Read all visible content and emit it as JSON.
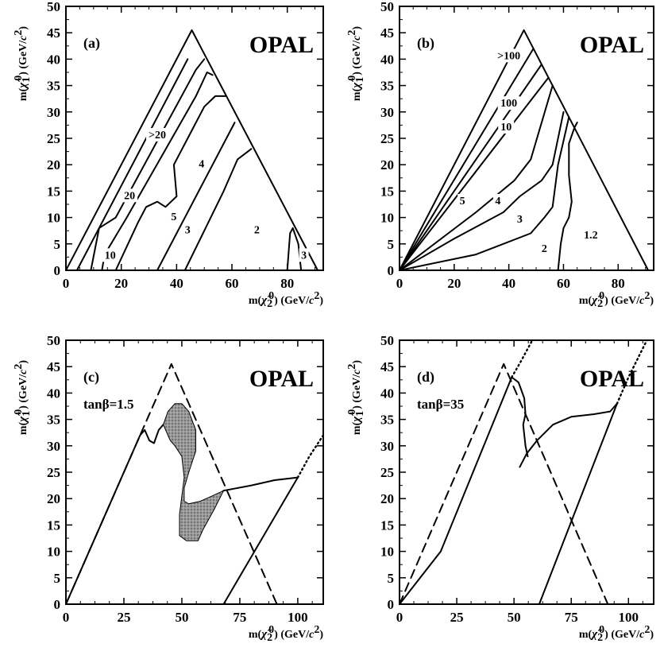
{
  "chart_data": [
    {
      "type": "line",
      "panel": "a",
      "tag": "(a)",
      "experiment": "OPAL",
      "xlabel": "m(χ̃₂⁰) (GeV/c²)",
      "ylabel": "m(χ̃₁⁰) (GeV/c²)",
      "xlim": [
        0,
        93
      ],
      "ylim": [
        0,
        50
      ],
      "xticks": [
        0,
        20,
        40,
        60,
        80
      ],
      "yticks": [
        0,
        5,
        10,
        15,
        20,
        25,
        30,
        35,
        40,
        45,
        50
      ],
      "series": [
        {
          "name": "boundary",
          "style": "solid",
          "x": [
            0,
            45.5,
            91,
            0
          ],
          "y": [
            0,
            45.5,
            0,
            0
          ]
        },
        {
          "style": "solid",
          "x": [
            4,
            44
          ],
          "y": [
            0,
            40
          ]
        },
        {
          "style": "solid",
          "x": [
            9,
            12,
            18,
            47,
            50
          ],
          "y": [
            0,
            8,
            10,
            38,
            40
          ]
        },
        {
          "style": "solid",
          "x": [
            13,
            14,
            22,
            47,
            51,
            53
          ],
          "y": [
            0,
            3,
            10,
            33,
            37.5,
            37
          ]
        },
        {
          "style": "solid",
          "x": [
            18,
            26,
            29,
            33,
            36,
            40,
            39,
            45,
            50,
            54,
            58
          ],
          "y": [
            0,
            9,
            12,
            13,
            12,
            14,
            20,
            26,
            31,
            33,
            33
          ]
        },
        {
          "style": "solid",
          "x": [
            33,
            61
          ],
          "y": [
            0,
            28
          ]
        },
        {
          "style": "solid",
          "x": [
            43,
            57,
            62,
            67
          ],
          "y": [
            0,
            15,
            21,
            23
          ]
        },
        {
          "style": "solid",
          "x": [
            80,
            81,
            82,
            84,
            85
          ],
          "y": [
            0,
            7,
            8,
            5,
            0
          ]
        }
      ],
      "contour_labels": [
        {
          "text": ">20",
          "x": 33,
          "y": 25
        },
        {
          "text": "20",
          "x": 23,
          "y": 13.5
        },
        {
          "text": "10",
          "x": 16,
          "y": 2.2
        },
        {
          "text": "5",
          "x": 39,
          "y": 9.5
        },
        {
          "text": "4",
          "x": 49,
          "y": 19.5
        },
        {
          "text": "3",
          "x": 44,
          "y": 7
        },
        {
          "text": "2",
          "x": 69,
          "y": 7
        },
        {
          "text": "3",
          "x": 86,
          "y": 2.2
        }
      ]
    },
    {
      "type": "line",
      "panel": "b",
      "tag": "(b)",
      "experiment": "OPAL",
      "xlabel": "m(χ̃₂⁰) (GeV/c²)",
      "ylabel": "m(χ̃₁⁰) (GeV/c²)",
      "xlim": [
        0,
        93
      ],
      "ylim": [
        0,
        50
      ],
      "xticks": [
        0,
        20,
        40,
        60,
        80
      ],
      "yticks": [
        0,
        5,
        10,
        15,
        20,
        25,
        30,
        35,
        40,
        45,
        50
      ],
      "series": [
        {
          "name": "boundary",
          "style": "solid",
          "x": [
            0,
            45.5,
            91,
            0
          ],
          "y": [
            0,
            45.5,
            0,
            0
          ]
        },
        {
          "style": "solid",
          "x": [
            0,
            49
          ],
          "y": [
            0,
            42
          ]
        },
        {
          "style": "solid",
          "x": [
            0,
            52
          ],
          "y": [
            0,
            39
          ]
        },
        {
          "style": "solid",
          "x": [
            0,
            54.5
          ],
          "y": [
            0,
            36.5
          ]
        },
        {
          "style": "solid",
          "x": [
            0,
            28,
            42,
            48,
            56
          ],
          "y": [
            0,
            11,
            17,
            21,
            35
          ]
        },
        {
          "style": "solid",
          "x": [
            0,
            20,
            38,
            44,
            52,
            56,
            60
          ],
          "y": [
            0,
            6,
            11,
            14,
            17,
            20,
            30
          ]
        },
        {
          "style": "solid",
          "x": [
            0,
            28,
            48,
            53,
            56,
            58,
            62
          ],
          "y": [
            0,
            3,
            7,
            10,
            12,
            20,
            29
          ]
        },
        {
          "style": "solid",
          "x": [
            58,
            59,
            60,
            62,
            63,
            62,
            62,
            64,
            65
          ],
          "y": [
            0,
            5,
            8,
            10,
            13,
            18,
            24,
            27,
            28
          ]
        }
      ],
      "contour_labels": [
        {
          "text": ">100",
          "x": 40,
          "y": 40
        },
        {
          "text": "100",
          "x": 40,
          "y": 31
        },
        {
          "text": "10",
          "x": 39,
          "y": 26.5
        },
        {
          "text": "5",
          "x": 23,
          "y": 12.5
        },
        {
          "text": "4",
          "x": 36,
          "y": 12.5
        },
        {
          "text": "3",
          "x": 44,
          "y": 9
        },
        {
          "text": "2",
          "x": 53,
          "y": 3.5
        },
        {
          "text": "1.2",
          "x": 70,
          "y": 6
        }
      ]
    },
    {
      "type": "line",
      "panel": "c",
      "tag": "(c)",
      "experiment": "OPAL",
      "annotation": "tanβ=1.5",
      "xlabel": "m(χ̃₂⁰) (GeV/c²)",
      "ylabel": "m(χ̃₁⁰) (GeV/c²)",
      "xlim": [
        0,
        111
      ],
      "ylim": [
        0,
        50
      ],
      "xticks": [
        0,
        25,
        50,
        75,
        100
      ],
      "yticks": [
        0,
        5,
        10,
        15,
        20,
        25,
        30,
        35,
        40,
        45,
        50
      ],
      "series": [
        {
          "style": "dashed",
          "x": [
            0,
            45.5,
            91
          ],
          "y": [
            0,
            45.5,
            0
          ]
        },
        {
          "style": "solid",
          "x": [
            0,
            32,
            34,
            36,
            38,
            40,
            42
          ],
          "y": [
            0,
            32,
            33,
            31,
            30.5,
            33,
            34
          ]
        },
        {
          "style": "solid",
          "x": [
            68,
            100
          ],
          "y": [
            0,
            24
          ]
        },
        {
          "style": "dotted",
          "x": [
            100,
            105,
            111
          ],
          "y": [
            24,
            28,
            32
          ]
        },
        {
          "style": "solid",
          "x": [
            57,
            62,
            68,
            80,
            90,
            100
          ],
          "y": [
            15,
            19,
            21.5,
            22.5,
            23.5,
            24
          ]
        },
        {
          "name": "shaded region",
          "style": "filled",
          "x": [
            42,
            44,
            47,
            50,
            53,
            56,
            56,
            53,
            51,
            51,
            53,
            58,
            63,
            68,
            64,
            59,
            57,
            56,
            52,
            49,
            49,
            51,
            50,
            47,
            45,
            42
          ],
          "y": [
            34,
            36.5,
            38,
            38,
            36.5,
            33,
            29,
            25,
            22,
            19.5,
            19,
            19.5,
            20.5,
            21.5,
            18,
            14,
            12,
            12,
            12,
            13,
            17,
            24,
            28,
            30,
            31,
            34
          ]
        }
      ]
    },
    {
      "type": "line",
      "panel": "d",
      "tag": "(d)",
      "experiment": "OPAL",
      "annotation": "tanβ=35",
      "xlabel": "m(χ̃₂⁰) (GeV/c²)",
      "ylabel": "m(χ̃₁⁰) (GeV/c²)",
      "xlim": [
        0,
        111
      ],
      "ylim": [
        0,
        50
      ],
      "xticks": [
        0,
        25,
        50,
        75,
        100
      ],
      "yticks": [
        0,
        5,
        10,
        15,
        20,
        25,
        30,
        35,
        40,
        45,
        50
      ],
      "series": [
        {
          "style": "dashed",
          "x": [
            0,
            45.5,
            91
          ],
          "y": [
            0,
            45.5,
            0
          ]
        },
        {
          "style": "solid",
          "x": [
            0,
            18,
            49
          ],
          "y": [
            0,
            10,
            43
          ]
        },
        {
          "style": "dotted",
          "x": [
            49,
            53,
            58
          ],
          "y": [
            43,
            46,
            50
          ]
        },
        {
          "style": "solid",
          "x": [
            49,
            52,
            54.5,
            55,
            54,
            55,
            56
          ],
          "y": [
            43,
            42,
            39,
            36,
            34,
            30,
            28
          ]
        },
        {
          "style": "solid",
          "x": [
            52.5,
            55.5,
            60,
            67,
            75,
            85,
            92,
            95
          ],
          "y": [
            26,
            28.5,
            31,
            34,
            35.5,
            36,
            36.5,
            38
          ]
        },
        {
          "style": "solid",
          "x": [
            61,
            95
          ],
          "y": [
            0,
            38
          ]
        },
        {
          "style": "dotted",
          "x": [
            95,
            100,
            108
          ],
          "y": [
            38,
            43,
            50
          ]
        }
      ]
    }
  ],
  "axis_text": {
    "m_open": "m(",
    "chi_symbol": "χ̃",
    "sub_1": "1",
    "sub_2": "2",
    "sup_0": "0",
    "unit": ") (GeV/",
    "c_letter": "c",
    "sup_2": "2",
    "unit_close": ")"
  }
}
